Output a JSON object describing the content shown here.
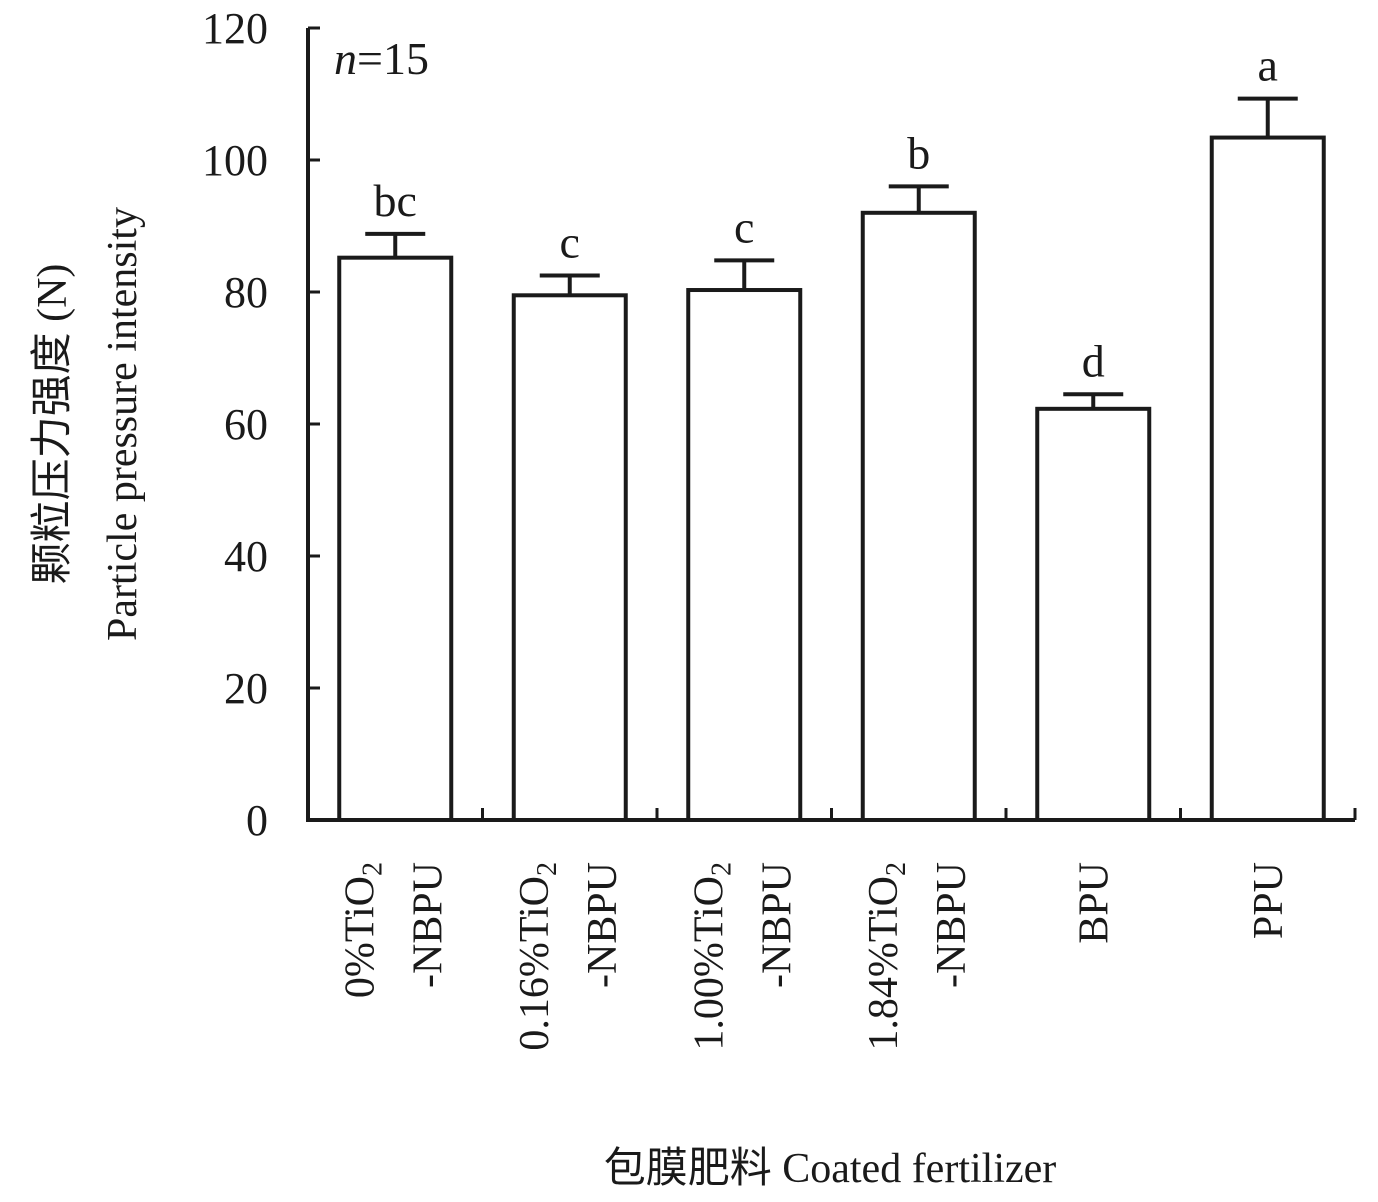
{
  "chart_data": {
    "type": "bar",
    "categories": [
      {
        "line1": "0%TiO",
        "sub": "2",
        "line2": "-NBPU"
      },
      {
        "line1": "0.16%TiO",
        "sub": "2",
        "line2": "-NBPU"
      },
      {
        "line1": "1.00%TiO",
        "sub": "2",
        "line2": "-NBPU"
      },
      {
        "line1": "1.84%TiO",
        "sub": "2",
        "line2": "-NBPU"
      },
      {
        "line1": "BPU",
        "sub": "",
        "line2": ""
      },
      {
        "line1": "PPU",
        "sub": "",
        "line2": ""
      }
    ],
    "values": [
      85.2,
      79.5,
      80.3,
      92.0,
      62.3,
      103.4
    ],
    "errors": [
      3.6,
      3.0,
      4.5,
      4.0,
      2.2,
      5.9
    ],
    "significance": [
      "bc",
      "c",
      "c",
      "b",
      "d",
      "a"
    ],
    "ylim": [
      0,
      120
    ],
    "yticks": [
      "0",
      "20",
      "40",
      "60",
      "80",
      "100",
      "120"
    ],
    "ylabel_cn": "颗粒压力强度 (N)",
    "ylabel_en": "Particle pressure intensity",
    "xlabel": "包膜肥料 Coated  fertilizer",
    "annotation_italic": "n",
    "annotation_rest": "=15",
    "bar_fill": "#ffffff",
    "bar_stroke": "#1a1a1a"
  }
}
